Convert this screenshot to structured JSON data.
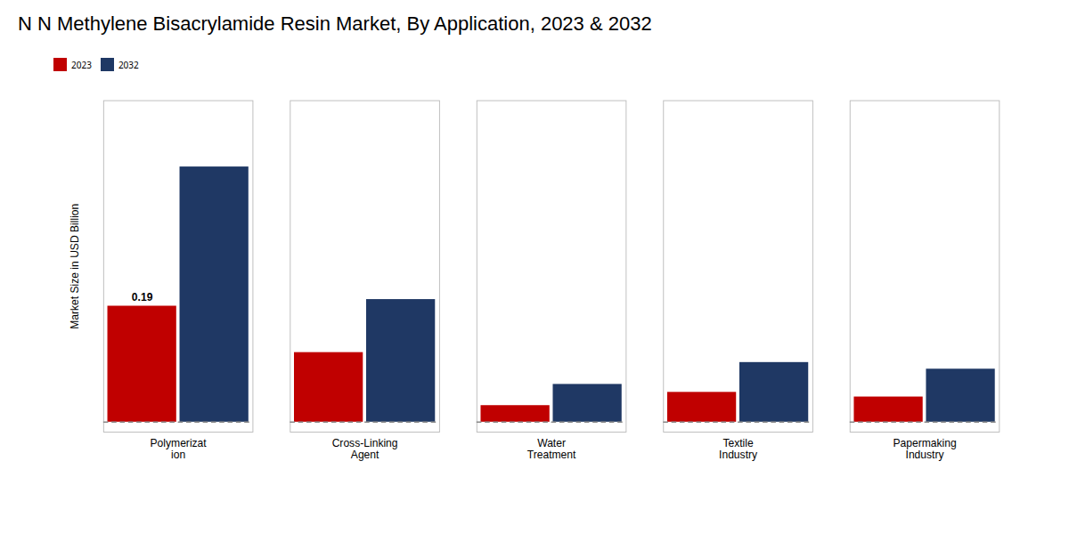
{
  "chart_data": {
    "type": "bar",
    "title": "N N Methylene Bisacrylamide Resin Market, By Application, 2023 & 2032",
    "categories": [
      "Polymerizat\nion",
      "Cross-Linking\nAgent",
      "Water\nTreatment",
      "Textile\nIndustry",
      "Papermaking\nIndustry"
    ],
    "series": [
      {
        "name": "2023",
        "color": "#c00000",
        "values": [
          0.19,
          0.12,
          0.04,
          0.06,
          0.053
        ]
      },
      {
        "name": "2032",
        "color": "#1f3864",
        "values": [
          0.4,
          0.2,
          0.072,
          0.105,
          0.095
        ]
      }
    ],
    "ylabel": "Market Size in USD Billion",
    "ylim": [
      0,
      0.5
    ],
    "baseline": 0.015,
    "annotations": [
      {
        "text": "0.19",
        "x": "Polymerizat\nion",
        "series": "2023",
        "y": 0.19
      }
    ],
    "legend": "top",
    "grid": false,
    "tick_labels": "x"
  }
}
